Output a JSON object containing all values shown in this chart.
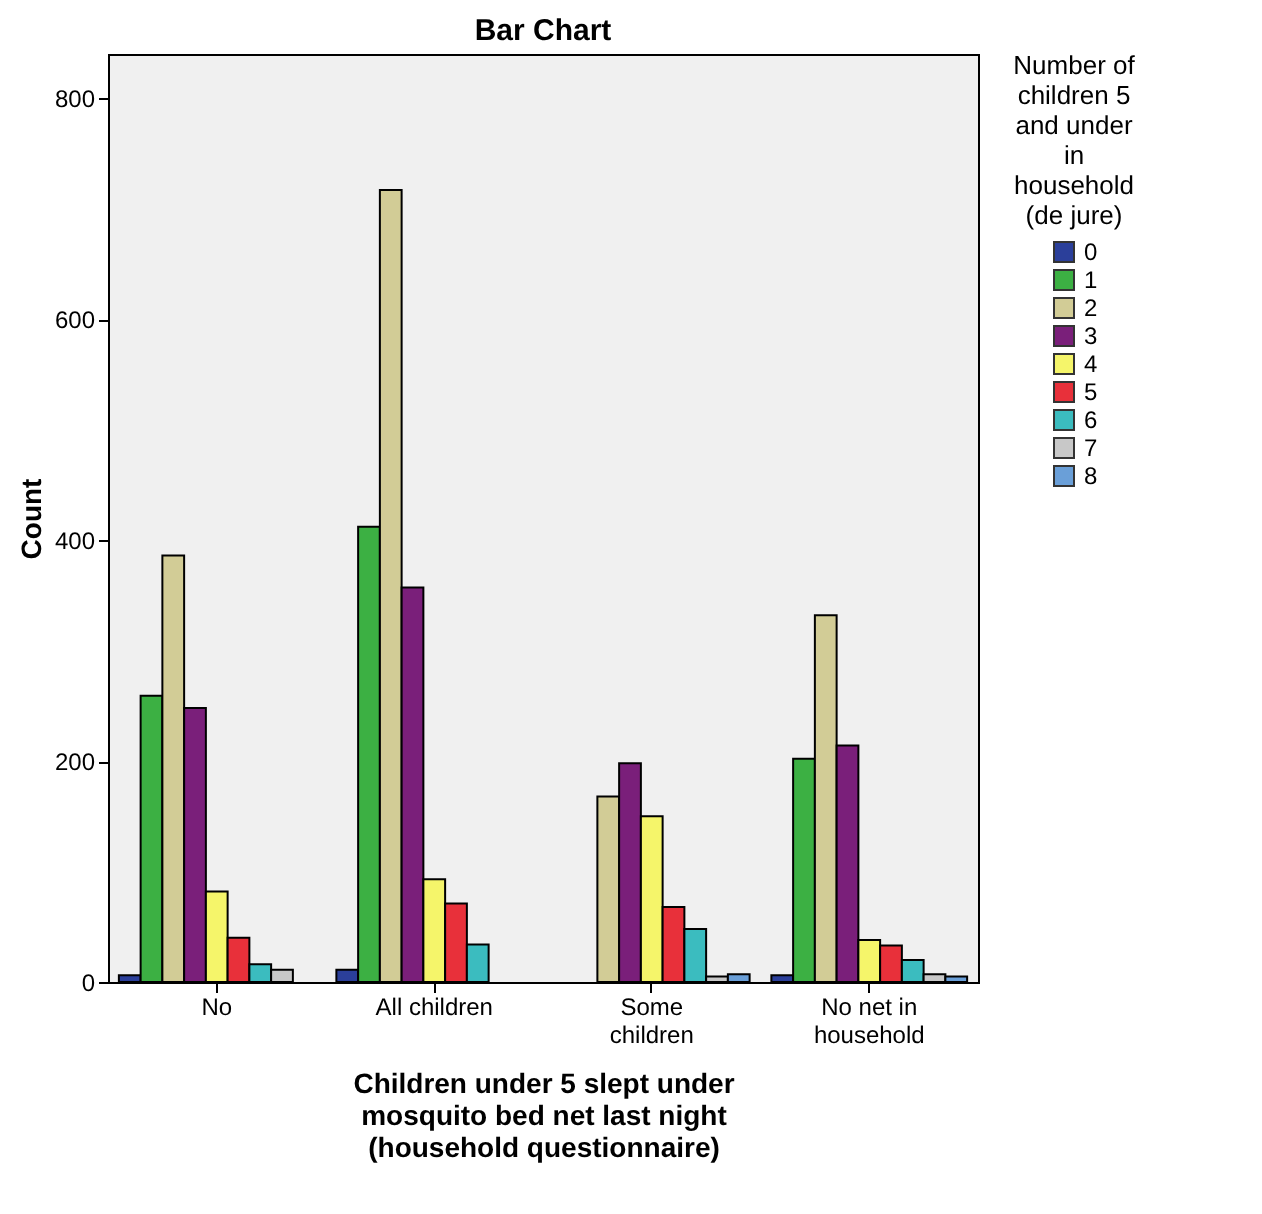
{
  "chart_data": {
    "type": "bar",
    "title": "Bar Chart",
    "xlabel": "Children under 5 slept under mosquito bed net last night (household questionnaire)",
    "ylabel": "Count",
    "legend_title": "Number of children 5 and under in household (de jure)",
    "legend": "right",
    "grid": false,
    "categories": [
      "No",
      "All children",
      "Some children",
      "No net in household"
    ],
    "ylim": [
      0,
      840
    ],
    "yticks": [
      0,
      200,
      400,
      600,
      800
    ],
    "series": [
      {
        "name": "0",
        "color": "#2b3f9a",
        "values": [
          6,
          11,
          null,
          6
        ]
      },
      {
        "name": "1",
        "color": "#3cb043",
        "values": [
          259,
          412,
          null,
          202
        ]
      },
      {
        "name": "2",
        "color": "#d2cc96",
        "values": [
          386,
          717,
          168,
          332
        ]
      },
      {
        "name": "3",
        "color": "#7a1f7a",
        "values": [
          248,
          357,
          198,
          214
        ]
      },
      {
        "name": "4",
        "color": "#f5f56a",
        "values": [
          82,
          93,
          150,
          38
        ]
      },
      {
        "name": "5",
        "color": "#e8303a",
        "values": [
          40,
          71,
          68,
          33
        ]
      },
      {
        "name": "6",
        "color": "#3bbcbf",
        "values": [
          16,
          34,
          48,
          20
        ]
      },
      {
        "name": "7",
        "color": "#c8c8c8",
        "values": [
          11,
          null,
          5,
          7
        ]
      },
      {
        "name": "8",
        "color": "#6a9fd8",
        "values": [
          null,
          null,
          7,
          5
        ]
      }
    ]
  }
}
